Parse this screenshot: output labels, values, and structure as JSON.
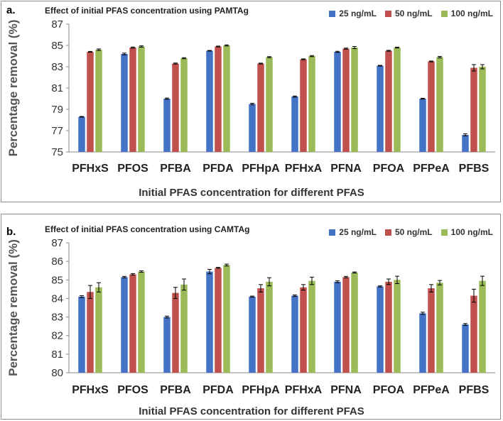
{
  "chart_data": [
    {
      "type": "bar",
      "panel_label": "a.",
      "title": "Effect of initial  PFAS concentration  using PAMTAg",
      "xlabel": "Initial PFAS concentration for different PFAS",
      "ylabel": "Percentage removal (%)",
      "ylim": [
        75,
        87
      ],
      "yticks": [
        75,
        77,
        79,
        81,
        83,
        85,
        87
      ],
      "categories": [
        "PFHxS",
        "PFOS",
        "PFBA",
        "PFDA",
        "PFHpA",
        "PFHxA",
        "PFNA",
        "PFOA",
        "PFPeA",
        "PFBS"
      ],
      "series": [
        {
          "name": "25 ng/mL",
          "color": "#4472C4",
          "values": [
            78.3,
            84.2,
            80.0,
            84.5,
            79.5,
            80.2,
            84.4,
            83.1,
            80.0,
            76.6
          ],
          "errors": [
            0.03,
            0.08,
            0.06,
            0.03,
            0.07,
            0.05,
            0.05,
            0.03,
            0.04,
            0.1
          ]
        },
        {
          "name": "50 ng/mL",
          "color": "#C0504D",
          "values": [
            84.4,
            84.8,
            83.3,
            84.9,
            83.3,
            83.7,
            84.7,
            84.5,
            83.5,
            82.9
          ],
          "errors": [
            0.04,
            0.05,
            0.05,
            0.04,
            0.04,
            0.04,
            0.05,
            0.04,
            0.04,
            0.3
          ]
        },
        {
          "name": "100 ng/mL",
          "color": "#9BBB59",
          "values": [
            84.6,
            84.9,
            83.8,
            85.0,
            83.9,
            84.0,
            84.8,
            84.8,
            83.9,
            83.0
          ],
          "errors": [
            0.07,
            0.06,
            0.05,
            0.05,
            0.05,
            0.05,
            0.1,
            0.04,
            0.07,
            0.2
          ]
        }
      ]
    },
    {
      "type": "bar",
      "panel_label": "b.",
      "title": "Effect of initial  PFAS concentration  using CAMTAg",
      "xlabel": "Initial PFAS concentration for different PFAS",
      "ylabel": "Percentage removal (%)",
      "ylim": [
        80,
        87
      ],
      "yticks": [
        80,
        81,
        82,
        83,
        84,
        85,
        86,
        87
      ],
      "categories": [
        "PFHxS",
        "PFOS",
        "PFBA",
        "PFDA",
        "PFHpA",
        "PFHxA",
        "PFNA",
        "PFOA",
        "PFPeA",
        "PFBS"
      ],
      "series": [
        {
          "name": "25 ng/mL",
          "color": "#4472C4",
          "values": [
            84.1,
            85.15,
            83.0,
            85.45,
            84.1,
            84.15,
            84.9,
            84.65,
            83.2,
            82.6
          ],
          "errors": [
            0.05,
            0.04,
            0.05,
            0.12,
            0.03,
            0.04,
            0.05,
            0.03,
            0.06,
            0.05
          ]
        },
        {
          "name": "50 ng/mL",
          "color": "#C0504D",
          "values": [
            84.35,
            85.3,
            84.3,
            85.65,
            84.55,
            84.6,
            85.15,
            84.9,
            84.55,
            84.15
          ],
          "errors": [
            0.35,
            0.04,
            0.3,
            0.03,
            0.2,
            0.15,
            0.04,
            0.15,
            0.2,
            0.35
          ]
        },
        {
          "name": "100 ng/mL",
          "color": "#9BBB59",
          "values": [
            84.6,
            85.45,
            84.75,
            85.8,
            84.9,
            84.95,
            85.4,
            85.0,
            84.85,
            84.95
          ],
          "errors": [
            0.25,
            0.04,
            0.3,
            0.05,
            0.22,
            0.2,
            0.03,
            0.2,
            0.12,
            0.25
          ]
        }
      ]
    }
  ]
}
